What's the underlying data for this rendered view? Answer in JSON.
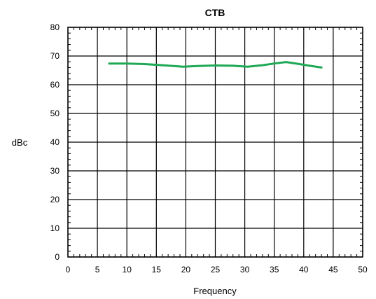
{
  "chart_data": {
    "type": "line",
    "title": "CTB",
    "xlabel": "Frequency",
    "ylabel": "dBc",
    "xlim": [
      0,
      50
    ],
    "ylim": [
      0,
      80
    ],
    "x_ticks": [
      0,
      5,
      10,
      15,
      20,
      25,
      30,
      35,
      40,
      45,
      50
    ],
    "y_ticks": [
      0,
      10,
      20,
      30,
      40,
      50,
      60,
      70,
      80
    ],
    "grid": true,
    "series": [
      {
        "color": "#1fa855",
        "x": [
          7,
          10,
          13,
          16,
          19.5,
          22,
          25,
          28,
          30.5,
          33,
          35,
          37,
          39,
          41,
          43
        ],
        "y": [
          67.4,
          67.4,
          67.2,
          66.8,
          66.3,
          66.5,
          66.7,
          66.6,
          66.3,
          66.8,
          67.4,
          67.9,
          67.3,
          66.6,
          66.0
        ]
      }
    ]
  }
}
